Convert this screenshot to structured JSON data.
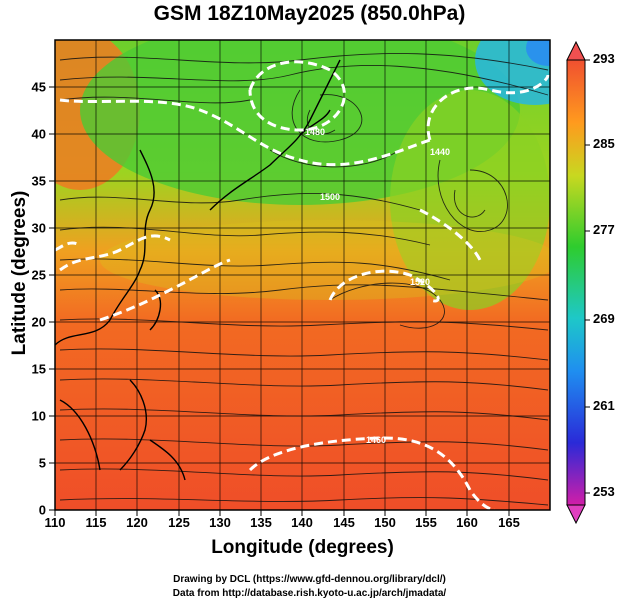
{
  "title": "GSM 18Z10May2025 (850.0hPa)",
  "axes": {
    "xlabel": "Longitude (degrees)",
    "ylabel": "Latitude  (degrees)",
    "xticks": [
      "110",
      "115",
      "120",
      "125",
      "130",
      "135",
      "140",
      "145",
      "150",
      "155",
      "160",
      "165"
    ],
    "yticks": [
      "0",
      "5",
      "10",
      "15",
      "20",
      "25",
      "30",
      "35",
      "40",
      "45"
    ],
    "xrange": [
      110,
      170
    ],
    "yrange": [
      0,
      50
    ]
  },
  "colorbar": {
    "labels": [
      "293",
      "285",
      "277",
      "269",
      "261",
      "253"
    ],
    "range": [
      253,
      293
    ],
    "colors": [
      "#d21ea8",
      "#2a2ad8",
      "#1f8ef0",
      "#1ec8c8",
      "#2ecc2e",
      "#c8d820",
      "#ff9a1e",
      "#f05030"
    ]
  },
  "contours": [
    {
      "label": "1460",
      "note": "geopotential height contour"
    },
    {
      "label": "1520"
    },
    {
      "label": "1500"
    },
    {
      "label": "1480"
    },
    {
      "label": "1440"
    }
  ],
  "credits": {
    "line1": "Drawing by DCL (https://www.gfd-dennou.org/library/dcl/)",
    "line2": "Data from http://database.rish.kyoto-u.ac.jp/arch/jmadata/"
  }
}
